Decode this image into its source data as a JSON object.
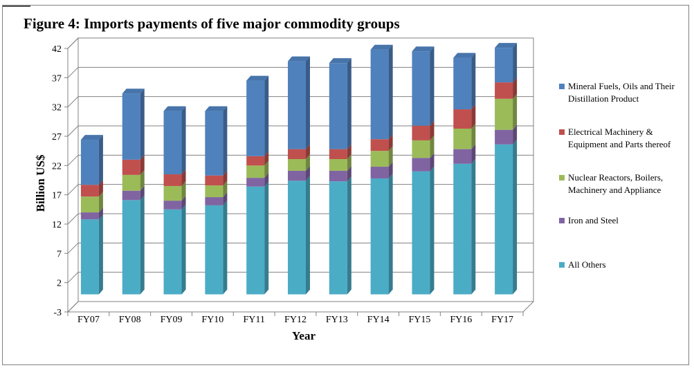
{
  "title": "Figure 4: Imports payments of five major commodity groups",
  "chart_data": {
    "type": "bar",
    "stacked": true,
    "three_d": true,
    "xlabel": "Year",
    "ylabel": "Billion US$",
    "ylim": [
      -3,
      42
    ],
    "yticks": [
      -3,
      2,
      7,
      12,
      17,
      22,
      27,
      32,
      37,
      42
    ],
    "grid": true,
    "legend_position": "right",
    "categories": [
      "FY07",
      "FY08",
      "FY09",
      "FY10",
      "FY11",
      "FY12",
      "FY13",
      "FY14",
      "FY15",
      "FY16",
      "FY17"
    ],
    "series": [
      {
        "name": "All Others",
        "color": "#4bacc6",
        "values": [
          12.8,
          16.1,
          14.5,
          15.2,
          18.4,
          19.4,
          19.3,
          19.8,
          21.0,
          22.3,
          25.6
        ]
      },
      {
        "name": "Iron and Steel",
        "color": "#8064a2",
        "values": [
          1.2,
          1.6,
          1.5,
          1.4,
          1.5,
          1.7,
          1.8,
          2.0,
          2.3,
          2.5,
          2.5
        ]
      },
      {
        "name": "Nuclear Reactors, Boilers, Machinery and Appliance",
        "color": "#9bbb59",
        "values": [
          2.7,
          2.7,
          2.5,
          2.0,
          2.1,
          2.0,
          2.0,
          2.7,
          3.0,
          3.5,
          5.3
        ]
      },
      {
        "name": "Electrical Machinery & Equipment and Parts thereof",
        "color": "#c0504d",
        "values": [
          2.0,
          2.6,
          2.0,
          1.7,
          1.6,
          1.7,
          1.7,
          2.0,
          2.5,
          3.3,
          2.8
        ]
      },
      {
        "name": "Mineral Fuels, Oils and Their Distillation Product",
        "color": "#4f81bd",
        "values": [
          7.7,
          11.3,
          10.8,
          11.0,
          12.9,
          15.0,
          14.7,
          15.3,
          12.7,
          8.8,
          5.9
        ]
      }
    ]
  }
}
